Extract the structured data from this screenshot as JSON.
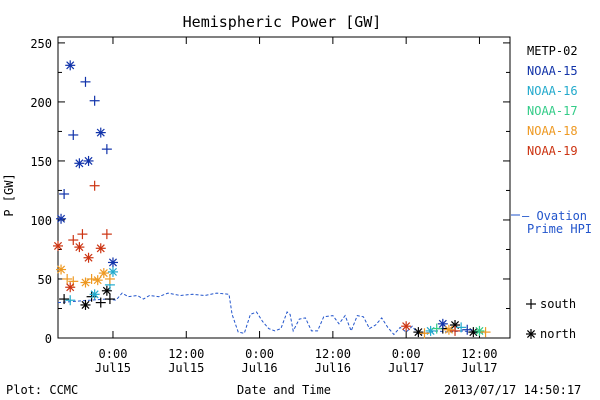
{
  "chart_data": {
    "type": "scatter",
    "title": "Hemispheric Power [GW]",
    "ylabel": "P [GW]",
    "xlabel": "Date and Time",
    "ylim": [
      0,
      255
    ],
    "yticks": [
      0,
      50,
      100,
      150,
      200,
      250
    ],
    "xrange": [
      "2013-07-14T15:00",
      "2013-07-17T17:00"
    ],
    "xticks": [
      {
        "t": "2013-07-15T00:00",
        "line1": "0:00",
        "line2": "Jul15"
      },
      {
        "t": "2013-07-15T12:00",
        "line1": "12:00",
        "line2": "Jul15"
      },
      {
        "t": "2013-07-16T00:00",
        "line1": "0:00",
        "line2": "Jul16"
      },
      {
        "t": "2013-07-16T12:00",
        "line1": "12:00",
        "line2": "Jul16"
      },
      {
        "t": "2013-07-17T00:00",
        "line1": "0:00",
        "line2": "Jul17"
      },
      {
        "t": "2013-07-17T12:00",
        "line1": "12:00",
        "line2": "Jul17"
      }
    ],
    "ovation": {
      "name": "— Ovation Prime HPI",
      "line1": "— Ovation",
      "line2": "Prime HPI",
      "color": "#2255cc",
      "points": [
        [
          "2013-07-14T15:00",
          30
        ],
        [
          "2013-07-14T23:00",
          33
        ],
        [
          "2013-07-15T00:30",
          32
        ],
        [
          "2013-07-15T01:30",
          38
        ],
        [
          "2013-07-15T02:30",
          35
        ],
        [
          "2013-07-15T04:00",
          36
        ],
        [
          "2013-07-15T05:00",
          33
        ],
        [
          "2013-07-15T06:00",
          36
        ],
        [
          "2013-07-15T07:30",
          35
        ],
        [
          "2013-07-15T09:00",
          38
        ],
        [
          "2013-07-15T11:00",
          36
        ],
        [
          "2013-07-15T13:00",
          37
        ],
        [
          "2013-07-15T15:00",
          36
        ],
        [
          "2013-07-15T17:00",
          38
        ],
        [
          "2013-07-15T19:00",
          37
        ],
        [
          "2013-07-15T19:30",
          20
        ],
        [
          "2013-07-15T20:30",
          5
        ],
        [
          "2013-07-15T21:30",
          4
        ],
        [
          "2013-07-15T22:30",
          20
        ],
        [
          "2013-07-15T23:30",
          22
        ],
        [
          "2013-07-16T00:30",
          14
        ],
        [
          "2013-07-16T01:30",
          8
        ],
        [
          "2013-07-16T02:30",
          6
        ],
        [
          "2013-07-16T03:30",
          8
        ],
        [
          "2013-07-16T04:30",
          22
        ],
        [
          "2013-07-16T05:00",
          20
        ],
        [
          "2013-07-16T05:30",
          6
        ],
        [
          "2013-07-16T06:30",
          16
        ],
        [
          "2013-07-16T07:30",
          17
        ],
        [
          "2013-07-16T08:30",
          6
        ],
        [
          "2013-07-16T09:30",
          6
        ],
        [
          "2013-07-16T10:30",
          18
        ],
        [
          "2013-07-16T12:00",
          19
        ],
        [
          "2013-07-16T13:00",
          12
        ],
        [
          "2013-07-16T14:00",
          19
        ],
        [
          "2013-07-16T15:00",
          6
        ],
        [
          "2013-07-16T16:00",
          19
        ],
        [
          "2013-07-16T17:00",
          18
        ],
        [
          "2013-07-16T18:00",
          8
        ],
        [
          "2013-07-16T19:00",
          11
        ],
        [
          "2013-07-16T20:00",
          17
        ],
        [
          "2013-07-16T21:00",
          9
        ],
        [
          "2013-07-16T22:00",
          3
        ],
        [
          "2013-07-16T23:00",
          9
        ],
        [
          "2013-07-17T00:00",
          5
        ],
        [
          "2013-07-17T01:00",
          10
        ],
        [
          "2013-07-17T02:00",
          3
        ],
        [
          "2013-07-17T03:00",
          4
        ],
        [
          "2013-07-17T05:00",
          6
        ],
        [
          "2013-07-17T07:00",
          5
        ],
        [
          "2013-07-17T09:00",
          6
        ],
        [
          "2013-07-17T11:00",
          5
        ],
        [
          "2013-07-17T13:00",
          4
        ]
      ]
    },
    "series": [
      {
        "name": "METP-02",
        "color": "#000000",
        "points": [
          {
            "t": "2013-07-14T16:00",
            "y": 33,
            "m": "+"
          },
          {
            "t": "2013-07-14T19:30",
            "y": 28,
            "m": "*"
          },
          {
            "t": "2013-07-14T20:30",
            "y": 35,
            "m": "+"
          },
          {
            "t": "2013-07-14T22:00",
            "y": 30,
            "m": "+"
          },
          {
            "t": "2013-07-14T23:00",
            "y": 40,
            "m": "*"
          },
          {
            "t": "2013-07-14T23:30",
            "y": 33,
            "m": "+"
          },
          {
            "t": "2013-07-17T02:00",
            "y": 5,
            "m": "*"
          },
          {
            "t": "2013-07-17T06:00",
            "y": 8,
            "m": "+"
          },
          {
            "t": "2013-07-17T08:00",
            "y": 11,
            "m": "*"
          },
          {
            "t": "2013-07-17T11:00",
            "y": 5,
            "m": "*"
          }
        ]
      },
      {
        "name": "NOAA-15",
        "color": "#1133aa",
        "points": [
          {
            "t": "2013-07-14T15:30",
            "y": 101,
            "m": "*"
          },
          {
            "t": "2013-07-14T16:00",
            "y": 122,
            "m": "+"
          },
          {
            "t": "2013-07-14T17:00",
            "y": 231,
            "m": "*"
          },
          {
            "t": "2013-07-14T17:30",
            "y": 172,
            "m": "+"
          },
          {
            "t": "2013-07-14T18:30",
            "y": 148,
            "m": "*"
          },
          {
            "t": "2013-07-14T19:30",
            "y": 217,
            "m": "+"
          },
          {
            "t": "2013-07-14T20:00",
            "y": 150,
            "m": "*"
          },
          {
            "t": "2013-07-14T21:00",
            "y": 201,
            "m": "+"
          },
          {
            "t": "2013-07-14T22:00",
            "y": 174,
            "m": "*"
          },
          {
            "t": "2013-07-14T23:00",
            "y": 160,
            "m": "+"
          },
          {
            "t": "2013-07-15T00:00",
            "y": 64,
            "m": "*"
          },
          {
            "t": "2013-07-17T06:00",
            "y": 12,
            "m": "*"
          },
          {
            "t": "2013-07-17T10:00",
            "y": 7,
            "m": "+"
          }
        ]
      },
      {
        "name": "NOAA-16",
        "color": "#22aacc",
        "points": [
          {
            "t": "2013-07-14T17:00",
            "y": 32,
            "m": "+"
          },
          {
            "t": "2013-07-14T21:00",
            "y": 37,
            "m": "*"
          },
          {
            "t": "2013-07-14T23:30",
            "y": 45,
            "m": "+"
          },
          {
            "t": "2013-07-15T00:00",
            "y": 56,
            "m": "*"
          },
          {
            "t": "2013-07-17T04:00",
            "y": 6,
            "m": "*"
          },
          {
            "t": "2013-07-17T09:00",
            "y": 9,
            "m": "+"
          }
        ]
      },
      {
        "name": "NOAA-17",
        "color": "#33cc88",
        "points": [
          {
            "t": "2013-07-17T05:00",
            "y": 8,
            "m": "+"
          },
          {
            "t": "2013-07-17T12:00",
            "y": 6,
            "m": "*"
          }
        ]
      },
      {
        "name": "NOAA-18",
        "color": "#ee9922",
        "points": [
          {
            "t": "2013-07-14T15:30",
            "y": 58,
            "m": "*"
          },
          {
            "t": "2013-07-14T16:30",
            "y": 50,
            "m": "+"
          },
          {
            "t": "2013-07-14T17:30",
            "y": 48,
            "m": "+"
          },
          {
            "t": "2013-07-14T19:30",
            "y": 47,
            "m": "*"
          },
          {
            "t": "2013-07-14T20:30",
            "y": 50,
            "m": "+"
          },
          {
            "t": "2013-07-14T21:30",
            "y": 49,
            "m": "*"
          },
          {
            "t": "2013-07-14T22:30",
            "y": 55,
            "m": "*"
          },
          {
            "t": "2013-07-14T23:30",
            "y": 50,
            "m": "+"
          },
          {
            "t": "2013-07-17T03:00",
            "y": 4,
            "m": "+"
          },
          {
            "t": "2013-07-17T07:00",
            "y": 7,
            "m": "*"
          },
          {
            "t": "2013-07-17T13:00",
            "y": 5,
            "m": "+"
          }
        ]
      },
      {
        "name": "NOAA-19",
        "color": "#cc3311",
        "points": [
          {
            "t": "2013-07-14T15:00",
            "y": 78,
            "m": "*"
          },
          {
            "t": "2013-07-14T17:00",
            "y": 43,
            "m": "*"
          },
          {
            "t": "2013-07-14T17:30",
            "y": 83,
            "m": "+"
          },
          {
            "t": "2013-07-14T18:30",
            "y": 77,
            "m": "*"
          },
          {
            "t": "2013-07-14T19:00",
            "y": 88,
            "m": "+"
          },
          {
            "t": "2013-07-14T20:00",
            "y": 68,
            "m": "*"
          },
          {
            "t": "2013-07-14T21:00",
            "y": 129,
            "m": "+"
          },
          {
            "t": "2013-07-14T22:00",
            "y": 76,
            "m": "*"
          },
          {
            "t": "2013-07-14T23:00",
            "y": 88,
            "m": "+"
          },
          {
            "t": "2013-07-17T00:00",
            "y": 10,
            "m": "*"
          },
          {
            "t": "2013-07-17T08:00",
            "y": 6,
            "m": "+"
          }
        ]
      }
    ],
    "marker_legend": [
      {
        "m": "+",
        "label": "south"
      },
      {
        "m": "*",
        "label": "north"
      }
    ]
  },
  "footer": {
    "plot_credit": "Plot: CCMC",
    "timestamp": "2013/07/17 14:50:17"
  }
}
